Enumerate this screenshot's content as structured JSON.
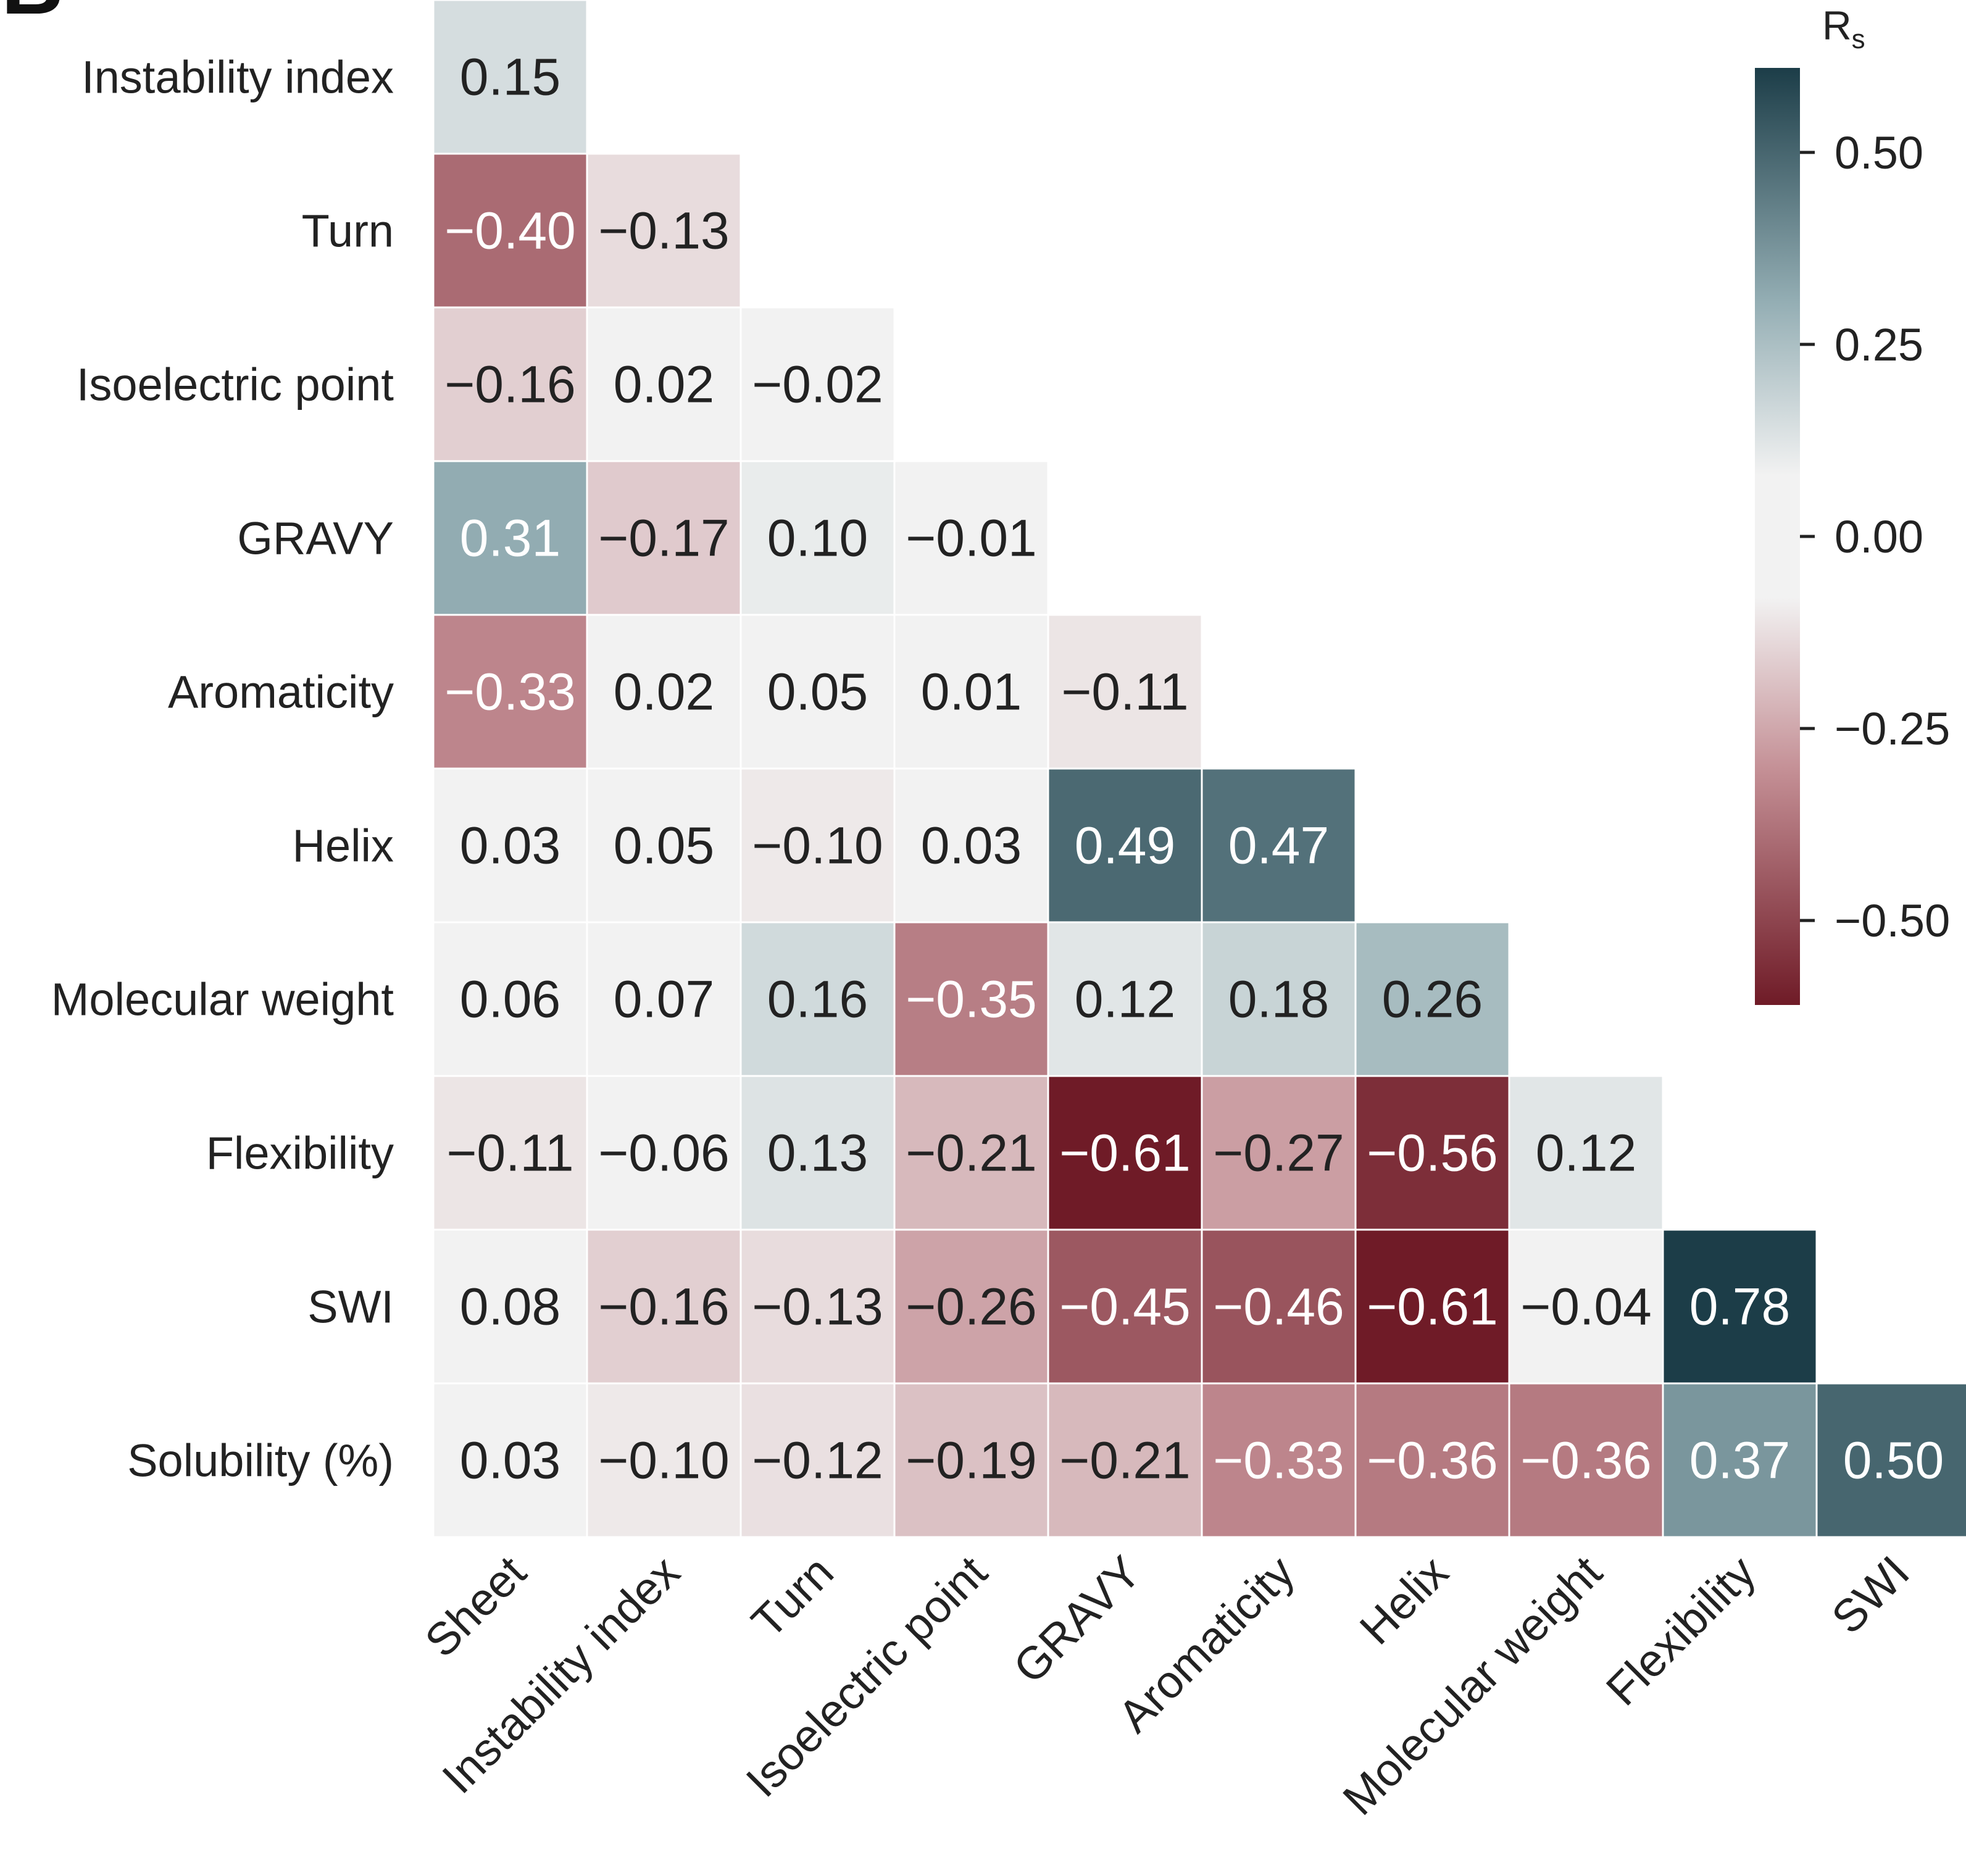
{
  "panel_label": "B",
  "chart_data": {
    "type": "heatmap",
    "title": "",
    "xlabel": "",
    "ylabel": "",
    "row_labels": [
      "Instability index",
      "Turn",
      "Isoelectric point",
      "GRAVY",
      "Aromaticity",
      "Helix",
      "Molecular weight",
      "Flexibility",
      "SWI",
      "Solubility (%)"
    ],
    "col_labels": [
      "Sheet",
      "Instability index",
      "Turn",
      "Isoelectric point",
      "GRAVY",
      "Aromaticity",
      "Helix",
      "Molecular weight",
      "Flexibility",
      "SWI"
    ],
    "values": [
      [
        0.15
      ],
      [
        -0.4,
        -0.13
      ],
      [
        -0.16,
        0.02,
        -0.02
      ],
      [
        0.31,
        -0.17,
        0.1,
        -0.01
      ],
      [
        -0.33,
        0.02,
        0.05,
        0.01,
        -0.11
      ],
      [
        0.03,
        0.05,
        -0.1,
        0.03,
        0.49,
        0.47
      ],
      [
        0.06,
        0.07,
        0.16,
        -0.35,
        0.12,
        0.18,
        0.26
      ],
      [
        -0.11,
        -0.06,
        0.13,
        -0.21,
        -0.61,
        -0.27,
        -0.56,
        0.12
      ],
      [
        0.08,
        -0.16,
        -0.13,
        -0.26,
        -0.45,
        -0.46,
        -0.61,
        -0.04,
        0.78
      ],
      [
        0.03,
        -0.1,
        -0.12,
        -0.19,
        -0.21,
        -0.33,
        -0.36,
        -0.36,
        0.37,
        0.5
      ]
    ],
    "value_labels": [
      [
        "0.15"
      ],
      [
        "−0.40",
        "−0.13"
      ],
      [
        "−0.16",
        "0.02",
        "−0.02"
      ],
      [
        "0.31",
        "−0.17",
        "0.10",
        "−0.01"
      ],
      [
        "−0.33",
        "0.02",
        "0.05",
        "0.01",
        "−0.11"
      ],
      [
        "0.03",
        "0.05",
        "−0.10",
        "0.03",
        "0.49",
        "0.47"
      ],
      [
        "0.06",
        "0.07",
        "0.16",
        "−0.35",
        "0.12",
        "0.18",
        "0.26"
      ],
      [
        "−0.11",
        "−0.06",
        "0.13",
        "−0.21",
        "−0.61",
        "−0.27",
        "−0.56",
        "0.12"
      ],
      [
        "0.08",
        "−0.16",
        "−0.13",
        "−0.26",
        "−0.45",
        "−0.46",
        "−0.61",
        "−0.04",
        "0.78"
      ],
      [
        "0.03",
        "−0.10",
        "−0.12",
        "−0.19",
        "−0.21",
        "−0.33",
        "−0.36",
        "−0.36",
        "0.37",
        "0.50"
      ]
    ],
    "colorbar": {
      "title": "Rs",
      "title_main": "R",
      "title_sub": "s",
      "range": [
        -0.61,
        0.61
      ],
      "ticks": [
        0.5,
        0.25,
        0.0,
        -0.25,
        -0.5
      ],
      "tick_labels": [
        "0.50",
        "0.25",
        "0.00",
        "−0.25",
        "−0.50"
      ]
    },
    "colors": {
      "negative_extreme": "#6f1b27",
      "negative_mid": "#c48f95",
      "neutral": "#f2f2f2",
      "positive_mid": "#94aeb4",
      "positive_extreme": "#1c3d48",
      "text_dark": "#222222",
      "text_light": "#ffffff"
    },
    "grid": false,
    "mask": "upper-triangle",
    "legend_position": "right"
  }
}
